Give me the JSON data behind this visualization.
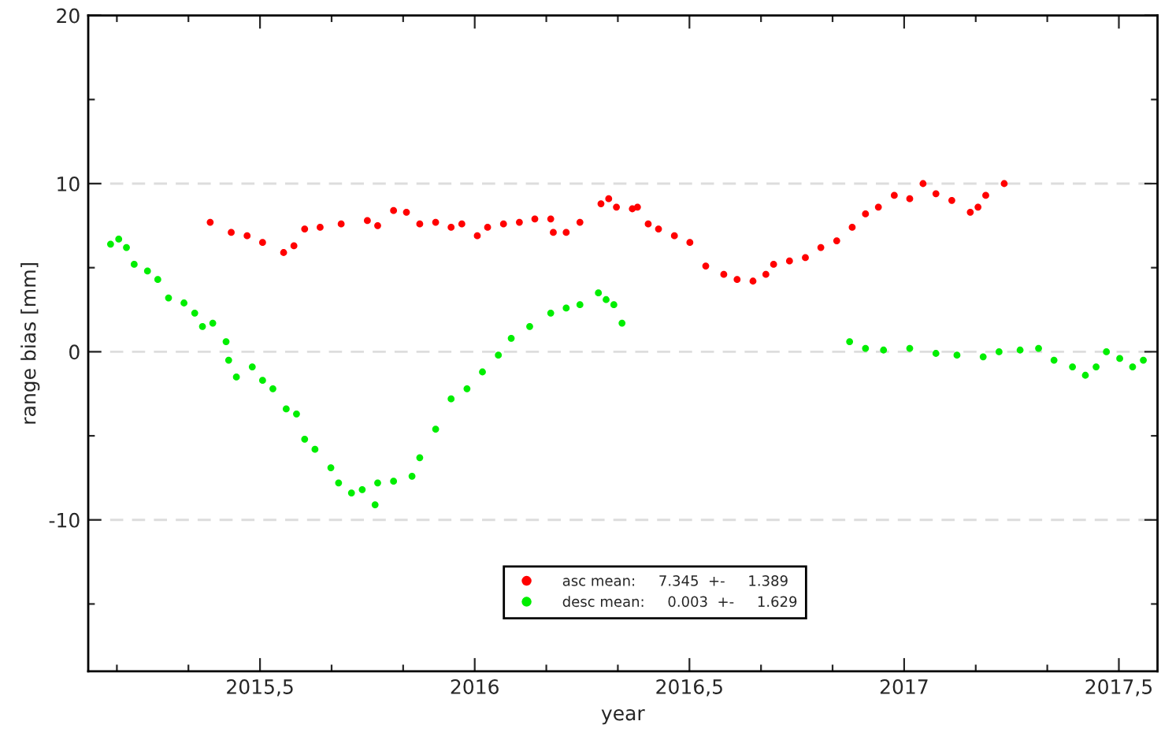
{
  "chart_data": {
    "type": "scatter",
    "xlabel": "year",
    "ylabel": "range bias [mm]",
    "xlim": [
      2015.1,
      2017.59
    ],
    "ylim": [
      -19,
      20
    ],
    "xticks": [
      {
        "value": 2015.1667,
        "label": null
      },
      {
        "value": 2015.3333,
        "label": null
      },
      {
        "value": 2015.5,
        "label": "2015,5"
      },
      {
        "value": 2015.6667,
        "label": null
      },
      {
        "value": 2015.8333,
        "label": null
      },
      2016,
      {
        "value": 2016.1667,
        "label": null
      },
      {
        "value": 2016.3333,
        "label": null
      },
      {
        "value": 2016.5,
        "label": "2016,5"
      },
      {
        "value": 2016.6667,
        "label": null
      },
      {
        "value": 2016.8333,
        "label": null
      },
      2017,
      {
        "value": 2017.1667,
        "label": null
      },
      {
        "value": 2017.3333,
        "label": null
      },
      {
        "value": 2017.5,
        "label": "2017,5"
      }
    ],
    "yticks": [
      {
        "value": -15,
        "label": null
      },
      -10,
      {
        "value": -5,
        "label": null
      },
      0,
      {
        "value": 5,
        "label": null
      },
      10,
      {
        "value": 15,
        "label": null
      },
      20
    ],
    "grid": "y",
    "legend": "bottom",
    "marker": "circle",
    "series": [
      {
        "name": "asc mean:     7.345  +-     1.389",
        "color": "#ff0000",
        "x": [
          2015.384,
          2015.433,
          2015.47,
          2015.506,
          2015.555,
          2015.579,
          2015.604,
          2015.64,
          2015.689,
          2015.75,
          2015.774,
          2015.811,
          2015.841,
          2015.872,
          2015.909,
          2015.945,
          2015.97,
          2016.006,
          2016.03,
          2016.067,
          2016.104,
          2016.14,
          2016.177,
          2016.183,
          2016.213,
          2016.245,
          2016.294,
          2016.312,
          2016.33,
          2016.367,
          2016.379,
          2016.404,
          2016.428,
          2016.465,
          2016.501,
          2016.538,
          2016.58,
          2016.611,
          2016.648,
          2016.678,
          2016.696,
          2016.733,
          2016.77,
          2016.806,
          2016.843,
          2016.879,
          2016.91,
          2016.94,
          2016.977,
          2017.013,
          2017.044,
          2017.074,
          2017.111,
          2017.154,
          2017.172,
          2017.19,
          2017.233
        ],
        "values": [
          7.7,
          7.1,
          6.9,
          6.5,
          5.9,
          6.3,
          7.3,
          7.4,
          7.6,
          7.8,
          7.5,
          8.4,
          8.3,
          7.6,
          7.7,
          7.4,
          7.6,
          6.9,
          7.4,
          7.6,
          7.7,
          7.9,
          7.9,
          7.1,
          7.1,
          7.7,
          8.8,
          9.1,
          8.6,
          8.5,
          8.6,
          7.6,
          7.3,
          6.9,
          6.5,
          5.1,
          4.6,
          4.3,
          4.2,
          4.6,
          5.2,
          5.4,
          5.6,
          6.2,
          6.6,
          7.4,
          8.2,
          8.6,
          9.3,
          9.1,
          10.0,
          9.4,
          9.0,
          8.3,
          8.6,
          9.3,
          10.0
        ]
      },
      {
        "name": "desc mean:     0.003  +-     1.629",
        "color": "#00ee00",
        "x": [
          2015.152,
          2015.171,
          2015.189,
          2015.207,
          2015.238,
          2015.262,
          2015.287,
          2015.323,
          2015.348,
          2015.366,
          2015.39,
          2015.421,
          2015.427,
          2015.445,
          2015.482,
          2015.506,
          2015.53,
          2015.561,
          2015.585,
          2015.604,
          2015.628,
          2015.665,
          2015.683,
          2015.713,
          2015.738,
          2015.768,
          2015.774,
          2015.811,
          2015.854,
          2015.872,
          2015.909,
          2015.945,
          2015.982,
          2016.018,
          2016.055,
          2016.085,
          2016.128,
          2016.177,
          2016.213,
          2016.245,
          2016.288,
          2016.306,
          2016.324,
          2016.343,
          2016.873,
          2016.91,
          2016.952,
          2017.013,
          2017.074,
          2017.123,
          2017.184,
          2017.221,
          2017.27,
          2017.313,
          2017.349,
          2017.392,
          2017.422,
          2017.447,
          2017.471,
          2017.502,
          2017.532,
          2017.557
        ],
        "values": [
          6.4,
          6.7,
          6.2,
          5.2,
          4.8,
          4.3,
          3.2,
          2.9,
          2.3,
          1.5,
          1.7,
          0.6,
          -0.5,
          -1.5,
          -0.9,
          -1.7,
          -2.2,
          -3.4,
          -3.7,
          -5.2,
          -5.8,
          -6.9,
          -7.8,
          -8.4,
          -8.2,
          -9.1,
          -7.8,
          -7.7,
          -7.4,
          -6.3,
          -4.6,
          -2.8,
          -2.2,
          -1.2,
          -0.2,
          0.8,
          1.5,
          2.3,
          2.6,
          2.8,
          3.5,
          3.1,
          2.8,
          1.7,
          0.6,
          0.2,
          0.1,
          0.2,
          -0.1,
          -0.2,
          -0.3,
          0.0,
          0.1,
          0.2,
          -0.5,
          -0.9,
          -1.4,
          -0.9,
          0.0,
          -0.4,
          -0.9,
          -0.5
        ]
      }
    ]
  }
}
